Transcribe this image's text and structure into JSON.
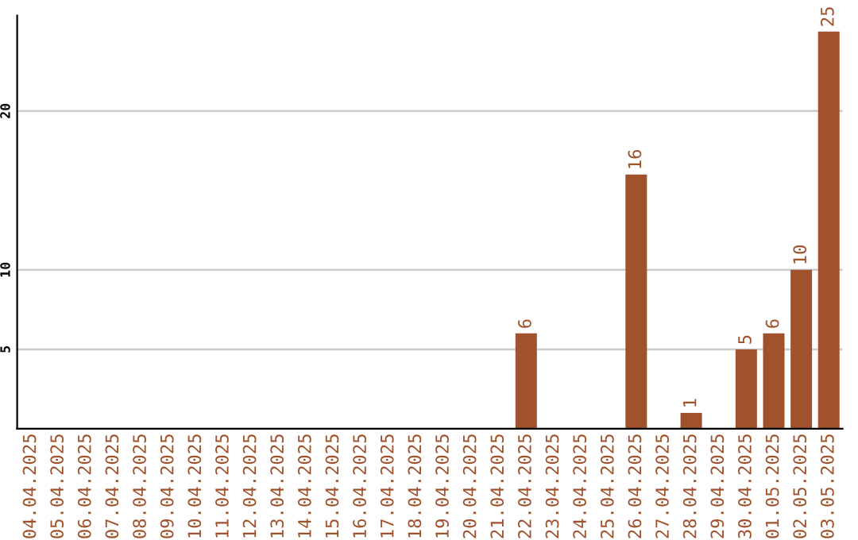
{
  "chart_data": {
    "type": "bar",
    "categories": [
      "04.04.2025",
      "05.04.2025",
      "06.04.2025",
      "07.04.2025",
      "08.04.2025",
      "09.04.2025",
      "10.04.2025",
      "11.04.2025",
      "12.04.2025",
      "13.04.2025",
      "14.04.2025",
      "15.04.2025",
      "16.04.2025",
      "17.04.2025",
      "18.04.2025",
      "19.04.2025",
      "20.04.2025",
      "21.04.2025",
      "22.04.2025",
      "23.04.2025",
      "24.04.2025",
      "25.04.2025",
      "26.04.2025",
      "27.04.2025",
      "28.04.2025",
      "29.04.2025",
      "30.04.2025",
      "01.05.2025",
      "02.05.2025",
      "03.05.2025"
    ],
    "values": [
      0,
      0,
      0,
      0,
      0,
      0,
      0,
      0,
      0,
      0,
      0,
      0,
      0,
      0,
      0,
      0,
      0,
      0,
      6,
      0,
      0,
      0,
      16,
      0,
      1,
      0,
      5,
      6,
      10,
      25
    ],
    "value_labels": [
      null,
      null,
      null,
      null,
      null,
      null,
      null,
      null,
      null,
      null,
      null,
      null,
      null,
      null,
      null,
      null,
      null,
      null,
      "6",
      null,
      null,
      null,
      "16",
      null,
      "1",
      null,
      "5",
      "6",
      "10",
      "25"
    ],
    "color": "#a0522d",
    "ylim": [
      0,
      26
    ],
    "yticks": [
      5,
      10,
      20
    ],
    "grid": "y"
  }
}
